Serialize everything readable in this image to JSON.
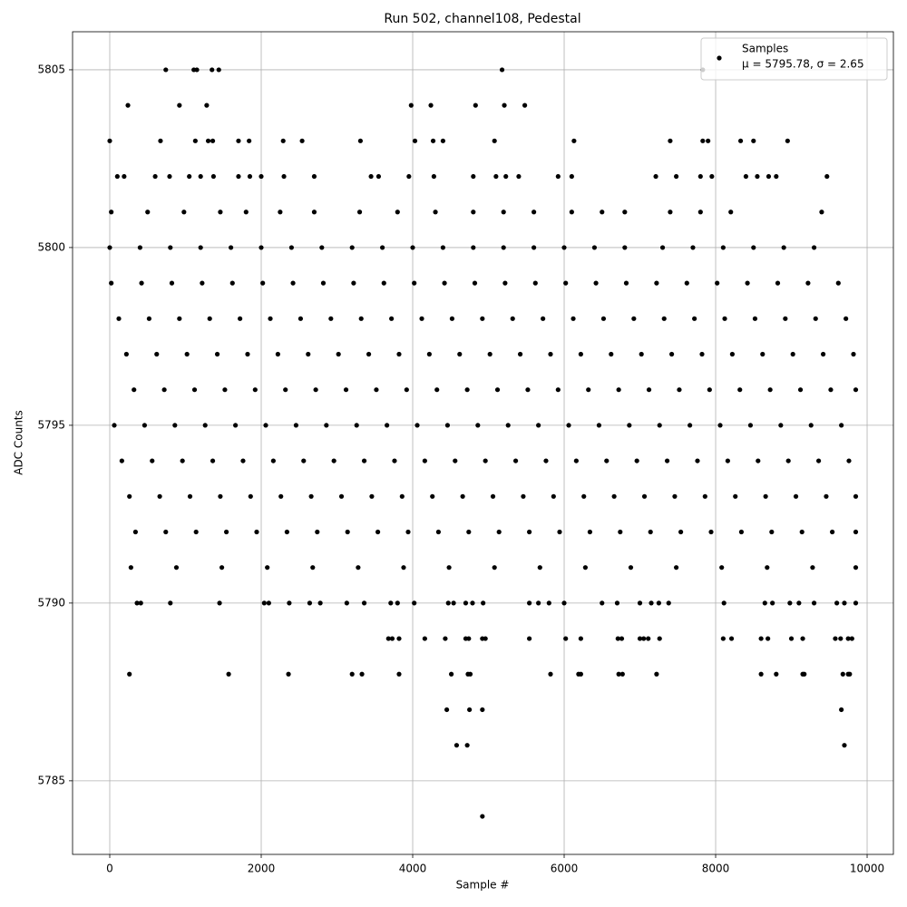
{
  "chart_data": {
    "type": "scatter",
    "title": "Run 502, channel108, Pedestal",
    "xlabel": "Sample #",
    "ylabel": "ADC Counts",
    "xlim": [
      -491,
      10347
    ],
    "ylim": [
      5782.93,
      5806.07
    ],
    "xticks": [
      0,
      2000,
      4000,
      6000,
      8000,
      10000
    ],
    "yticks": [
      5785,
      5790,
      5795,
      5800,
      5805
    ],
    "grid": true,
    "legend": "upper right",
    "stats": "μ = 5795.78, σ = 2.65",
    "x": [
      20,
      420,
      820,
      1220,
      1620,
      2020,
      2420,
      2820,
      3220,
      3620,
      4020,
      4420,
      4820,
      5220,
      5620,
      6020,
      6420,
      6820,
      7220,
      7620,
      8020,
      8420,
      8820,
      9220,
      9620,
      120,
      520,
      920,
      1320,
      1720,
      2120,
      2520,
      2920,
      3320,
      3720,
      4120,
      4520,
      4920,
      5320,
      5720,
      6120,
      6520,
      6920,
      7320,
      7720,
      8120,
      8520,
      8920,
      9320,
      9720,
      220,
      620,
      1020,
      1420,
      1820,
      2220,
      2620,
      3020,
      3420,
      3820,
      4220,
      4620,
      5020,
      5420,
      5820,
      6220,
      6620,
      7020,
      7420,
      7820,
      8220,
      8620,
      9020,
      9420,
      9820,
      320,
      720,
      1120,
      1520,
      1920,
      2320,
      2720,
      3120,
      3520,
      3920,
      4320,
      4720,
      5120,
      5520,
      5920,
      6320,
      6720,
      7120,
      7520,
      7920,
      8320,
      8720,
      9120,
      9520,
      9850,
      60,
      460,
      860,
      1260,
      1660,
      2060,
      2460,
      2860,
      3260,
      3660,
      4060,
      4460,
      4860,
      5260,
      5660,
      6060,
      6460,
      6860,
      7260,
      7660,
      8060,
      8460,
      8860,
      9260,
      9660,
      160,
      560,
      960,
      1360,
      1760,
      2160,
      2560,
      2960,
      3360,
      3760,
      4160,
      4560,
      4960,
      5360,
      5760,
      6160,
      6560,
      6960,
      7360,
      7760,
      8160,
      8560,
      8960,
      9360,
      9760,
      260,
      660,
      1060,
      1460,
      1860,
      2260,
      2660,
      3060,
      3460,
      3860,
      4260,
      4660,
      5060,
      5460,
      5860,
      6260,
      6660,
      7060,
      7460,
      7860,
      8260,
      8660,
      9060,
      9460,
      9850,
      0,
      400,
      800,
      1200,
      1600,
      2000,
      2400,
      2800,
      3200,
      3600,
      4000,
      4400,
      4800,
      5200,
      5600,
      6000,
      6400,
      6800,
      7300,
      7700,
      8100,
      8500,
      8900,
      9300,
      340,
      740,
      1140,
      1540,
      1940,
      2340,
      2740,
      3140,
      3540,
      3940,
      4340,
      4740,
      5140,
      5540,
      5940,
      6340,
      6740,
      7140,
      7540,
      7940,
      8340,
      8740,
      9140,
      9540,
      9850,
      280,
      880,
      1480,
      2080,
      2680,
      3280,
      3880,
      4480,
      5080,
      5680,
      6280,
      6880,
      7480,
      8080,
      8680,
      9280,
      9850,
      20,
      500,
      980,
      1460,
      1800,
      2250,
      2700,
      3300,
      3800,
      4300,
      4800,
      5200,
      5600,
      6100,
      6500,
      6800,
      7400,
      7800,
      8200,
      9400,
      360,
      410,
      800,
      1450,
      2040,
      2100,
      2370,
      2640,
      2780,
      3130,
      3360,
      3710,
      3800,
      4020,
      4470,
      4540,
      4700,
      4790,
      4930,
      5540,
      5660,
      5800,
      6000,
      6500,
      6700,
      7000,
      7150,
      7250,
      7380,
      8110,
      8650,
      8750,
      8980,
      9100,
      9300,
      9600,
      9700,
      9850,
      100,
      190,
      600,
      790,
      1050,
      1200,
      1370,
      1700,
      1850,
      2000,
      2300,
      2700,
      3450,
      3550,
      3950,
      4280,
      4800,
      5100,
      5230,
      5400,
      5920,
      6100,
      7210,
      7480,
      7800,
      7950,
      8400,
      8550,
      8700,
      8800,
      9470,
      0,
      670,
      1130,
      1300,
      1360,
      1700,
      1840,
      2290,
      2540,
      3310,
      4030,
      4270,
      4400,
      5080,
      6130,
      7400,
      7830,
      7900,
      8330,
      8500,
      8950,
      240,
      920,
      1280,
      3980,
      4240,
      4830,
      5210,
      5480,
      740,
      1110,
      1150,
      1350,
      1440,
      5180,
      7830,
      3680,
      3730,
      3820,
      4160,
      4430,
      4700,
      4740,
      4920,
      4960,
      5540,
      6020,
      6220,
      6710,
      6760,
      7000,
      7050,
      7110,
      7260,
      8100,
      8210,
      8600,
      8690,
      9000,
      9150,
      9580,
      9650,
      9750,
      9800,
      260,
      1570,
      2360,
      3200,
      3330,
      3820,
      4510,
      4730,
      4760,
      5820,
      6190,
      6220,
      6720,
      6770,
      7220,
      8600,
      8800,
      9150,
      9170,
      9680,
      9750,
      9770,
      4450,
      4750,
      4920,
      9660,
      4580,
      4720,
      9700,
      4920
    ],
    "series": [
      {
        "name": "Samples",
        "color": "#000000",
        "values": [
          5799,
          5799,
          5799,
          5799,
          5799,
          5799,
          5799,
          5799,
          5799,
          5799,
          5799,
          5799,
          5799,
          5799,
          5799,
          5799,
          5799,
          5799,
          5799,
          5799,
          5799,
          5799,
          5799,
          5799,
          5799,
          5798,
          5798,
          5798,
          5798,
          5798,
          5798,
          5798,
          5798,
          5798,
          5798,
          5798,
          5798,
          5798,
          5798,
          5798,
          5798,
          5798,
          5798,
          5798,
          5798,
          5798,
          5798,
          5798,
          5798,
          5798,
          5797,
          5797,
          5797,
          5797,
          5797,
          5797,
          5797,
          5797,
          5797,
          5797,
          5797,
          5797,
          5797,
          5797,
          5797,
          5797,
          5797,
          5797,
          5797,
          5797,
          5797,
          5797,
          5797,
          5797,
          5797,
          5796,
          5796,
          5796,
          5796,
          5796,
          5796,
          5796,
          5796,
          5796,
          5796,
          5796,
          5796,
          5796,
          5796,
          5796,
          5796,
          5796,
          5796,
          5796,
          5796,
          5796,
          5796,
          5796,
          5796,
          5796,
          5795,
          5795,
          5795,
          5795,
          5795,
          5795,
          5795,
          5795,
          5795,
          5795,
          5795,
          5795,
          5795,
          5795,
          5795,
          5795,
          5795,
          5795,
          5795,
          5795,
          5795,
          5795,
          5795,
          5795,
          5795,
          5794,
          5794,
          5794,
          5794,
          5794,
          5794,
          5794,
          5794,
          5794,
          5794,
          5794,
          5794,
          5794,
          5794,
          5794,
          5794,
          5794,
          5794,
          5794,
          5794,
          5794,
          5794,
          5794,
          5794,
          5794,
          5793,
          5793,
          5793,
          5793,
          5793,
          5793,
          5793,
          5793,
          5793,
          5793,
          5793,
          5793,
          5793,
          5793,
          5793,
          5793,
          5793,
          5793,
          5793,
          5793,
          5793,
          5793,
          5793,
          5793,
          5793,
          5800,
          5800,
          5800,
          5800,
          5800,
          5800,
          5800,
          5800,
          5800,
          5800,
          5800,
          5800,
          5800,
          5800,
          5800,
          5800,
          5800,
          5800,
          5800,
          5800,
          5800,
          5800,
          5800,
          5800,
          5792,
          5792,
          5792,
          5792,
          5792,
          5792,
          5792,
          5792,
          5792,
          5792,
          5792,
          5792,
          5792,
          5792,
          5792,
          5792,
          5792,
          5792,
          5792,
          5792,
          5792,
          5792,
          5792,
          5792,
          5792,
          5791,
          5791,
          5791,
          5791,
          5791,
          5791,
          5791,
          5791,
          5791,
          5791,
          5791,
          5791,
          5791,
          5791,
          5791,
          5791,
          5791,
          5801,
          5801,
          5801,
          5801,
          5801,
          5801,
          5801,
          5801,
          5801,
          5801,
          5801,
          5801,
          5801,
          5801,
          5801,
          5801,
          5801,
          5801,
          5801,
          5801,
          5790,
          5790,
          5790,
          5790,
          5790,
          5790,
          5790,
          5790,
          5790,
          5790,
          5790,
          5790,
          5790,
          5790,
          5790,
          5790,
          5790,
          5790,
          5790,
          5790,
          5790,
          5790,
          5790,
          5790,
          5790,
          5790,
          5790,
          5790,
          5790,
          5790,
          5790,
          5790,
          5790,
          5790,
          5790,
          5790,
          5790,
          5790,
          5802,
          5802,
          5802,
          5802,
          5802,
          5802,
          5802,
          5802,
          5802,
          5802,
          5802,
          5802,
          5802,
          5802,
          5802,
          5802,
          5802,
          5802,
          5802,
          5802,
          5802,
          5802,
          5802,
          5802,
          5802,
          5802,
          5802,
          5802,
          5802,
          5802,
          5802,
          5803,
          5803,
          5803,
          5803,
          5803,
          5803,
          5803,
          5803,
          5803,
          5803,
          5803,
          5803,
          5803,
          5803,
          5803,
          5803,
          5803,
          5803,
          5803,
          5803,
          5803,
          5804,
          5804,
          5804,
          5804,
          5804,
          5804,
          5804,
          5804,
          5805,
          5805,
          5805,
          5805,
          5805,
          5805,
          5805,
          5789,
          5789,
          5789,
          5789,
          5789,
          5789,
          5789,
          5789,
          5789,
          5789,
          5789,
          5789,
          5789,
          5789,
          5789,
          5789,
          5789,
          5789,
          5789,
          5789,
          5789,
          5789,
          5789,
          5789,
          5789,
          5789,
          5789,
          5789,
          5788,
          5788,
          5788,
          5788,
          5788,
          5788,
          5788,
          5788,
          5788,
          5788,
          5788,
          5788,
          5788,
          5788,
          5788,
          5788,
          5788,
          5788,
          5788,
          5788,
          5788,
          5788,
          5787,
          5787,
          5787,
          5787,
          5786,
          5786,
          5786,
          5784
        ]
      }
    ]
  }
}
